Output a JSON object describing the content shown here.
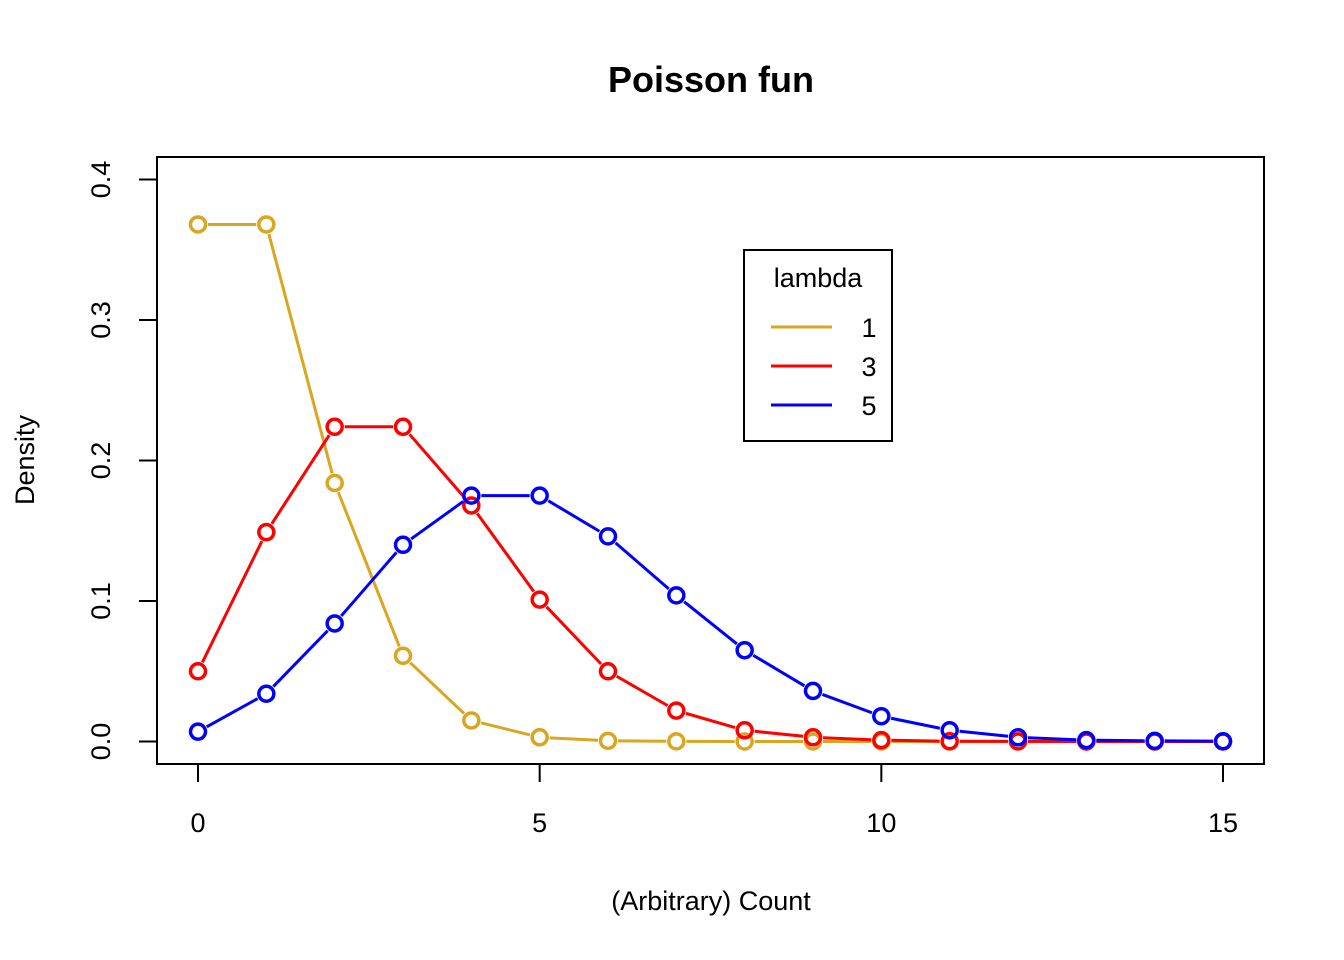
{
  "chart_data": {
    "type": "line",
    "title": "Poisson fun",
    "xlabel": "(Arbitrary) Count",
    "ylabel": "Density",
    "xlim": [
      -0.6,
      15.6
    ],
    "ylim": [
      -0.016,
      0.416
    ],
    "x_ticks": [
      0,
      5,
      10,
      15
    ],
    "x_tick_labels": [
      "0",
      "5",
      "10",
      "15"
    ],
    "y_ticks": [
      0.0,
      0.1,
      0.2,
      0.3,
      0.4
    ],
    "y_tick_labels": [
      "0.0",
      "0.1",
      "0.2",
      "0.3",
      "0.4"
    ],
    "grid": false,
    "markers": "open-circle",
    "legend": {
      "title": "lambda",
      "placement": "top-right-inset",
      "entries": [
        "1",
        "3",
        "5"
      ]
    },
    "x": [
      0,
      1,
      2,
      3,
      4,
      5,
      6,
      7,
      8,
      9,
      10,
      11,
      12,
      13,
      14,
      15
    ],
    "series": [
      {
        "name": "1",
        "color": "#DAA520",
        "values": [
          0.368,
          0.368,
          0.184,
          0.061,
          0.015,
          0.003,
          0.0005,
          0.0001,
          0.0,
          0.0,
          0.0,
          0.0,
          0.0,
          0.0,
          0.0,
          0.0
        ]
      },
      {
        "name": "3",
        "color": "#FF0000",
        "values": [
          0.05,
          0.149,
          0.224,
          0.224,
          0.168,
          0.101,
          0.05,
          0.022,
          0.008,
          0.003,
          0.001,
          0.0002,
          0.0001,
          0.0,
          0.0,
          0.0
        ]
      },
      {
        "name": "5",
        "color": "#0000FF",
        "values": [
          0.007,
          0.034,
          0.084,
          0.14,
          0.175,
          0.175,
          0.146,
          0.104,
          0.065,
          0.036,
          0.018,
          0.008,
          0.003,
          0.001,
          0.0005,
          0.0002
        ]
      }
    ]
  }
}
